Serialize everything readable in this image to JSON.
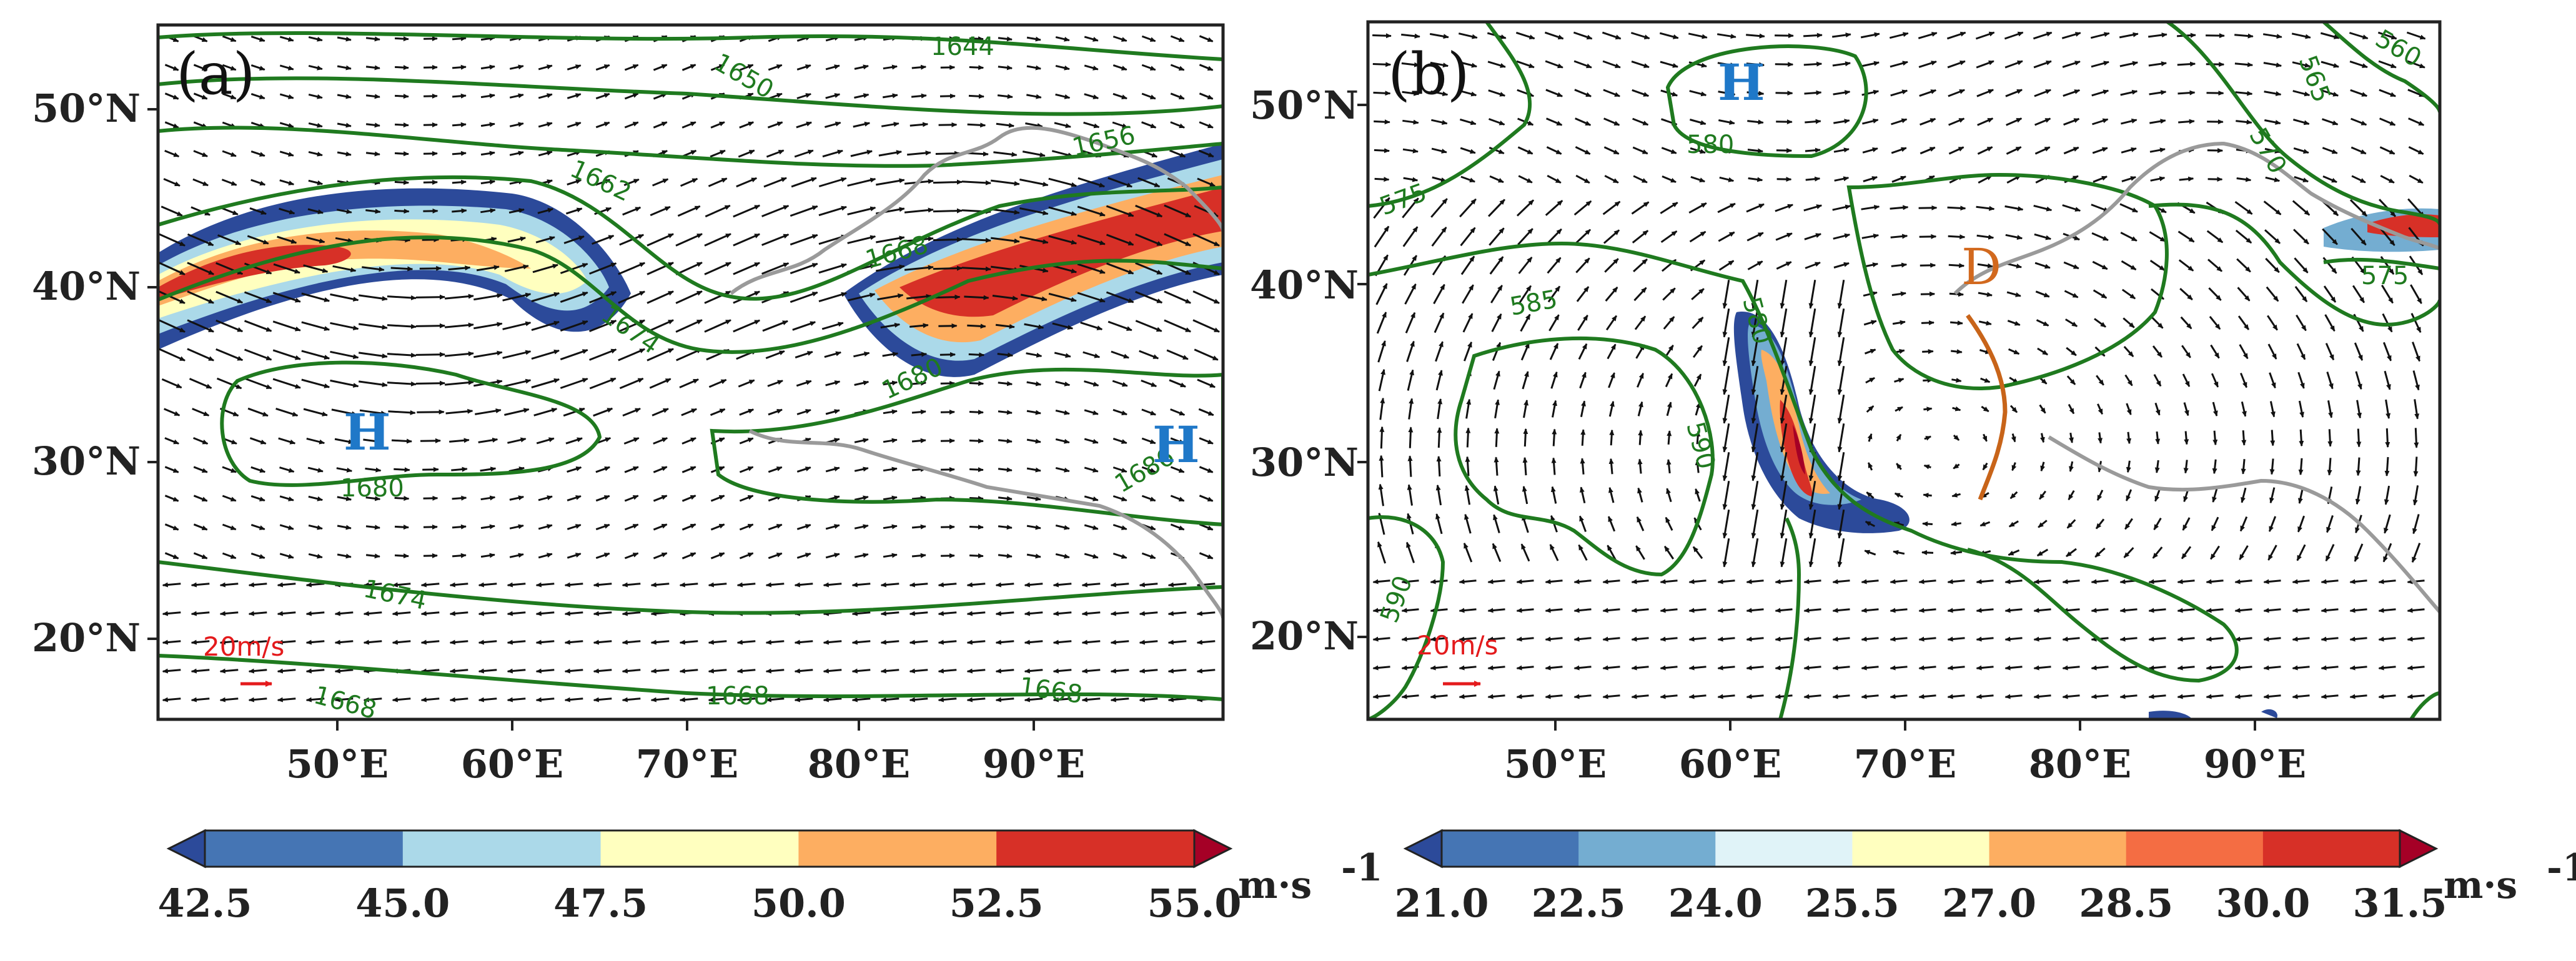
{
  "figure": {
    "panels": [
      {
        "label": "(a)",
        "lat_ticks": [
          "50°N",
          "40°N",
          "30°N",
          "20°N"
        ],
        "lon_ticks": [
          "50°E",
          "60°E",
          "70°E",
          "80°E",
          "90°E"
        ],
        "contour_labels": [
          "1644",
          "1650",
          "1656",
          "1662",
          "1668",
          "1674",
          "1680",
          "1680",
          "1686",
          "1674",
          "1668",
          "1668",
          "1668"
        ],
        "highs": [
          "H",
          "H"
        ],
        "ref_vector": "20m/s"
      },
      {
        "label": "(b)",
        "lat_ticks": [
          "50°N",
          "40°N",
          "30°N",
          "20°N"
        ],
        "lon_ticks": [
          "50°E",
          "60°E",
          "70°E",
          "80°E",
          "90°E"
        ],
        "contour_labels": [
          "580",
          "575",
          "585",
          "580",
          "590",
          "590",
          "565",
          "560",
          "570",
          "575"
        ],
        "highs": [
          "H"
        ],
        "trough": "D",
        "ref_vector": "20m/s"
      }
    ],
    "colorbars": [
      {
        "ticks": [
          "42.5",
          "45.0",
          "47.5",
          "50.0",
          "52.5",
          "55.0"
        ],
        "unit": "m·s",
        "unit_exp": "-1",
        "colors": [
          "#2c4a9a",
          "#4575b4",
          "#abd9e9",
          "#ffffbf",
          "#fdae61",
          "#d73027",
          "#a50026"
        ]
      },
      {
        "ticks": [
          "21.0",
          "22.5",
          "24.0",
          "25.5",
          "27.0",
          "28.5",
          "30.0",
          "31.5"
        ],
        "unit": "m·s",
        "unit_exp": "-1",
        "colors": [
          "#2c4a9a",
          "#4575b4",
          "#74add1",
          "#e0f3f8",
          "#ffffbf",
          "#fdae61",
          "#f46d43",
          "#d73027",
          "#a50026"
        ]
      }
    ]
  }
}
